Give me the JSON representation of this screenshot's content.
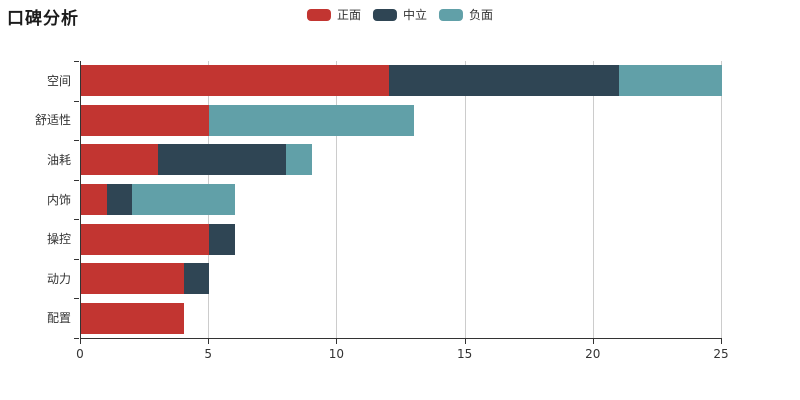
{
  "title": "口碑分析",
  "legend": {
    "position": "top-center",
    "items": [
      "正面",
      "中立",
      "负面"
    ]
  },
  "colors": {
    "positive": "#c23531",
    "neutral": "#2f4554",
    "negative": "#61a0a8",
    "axis_line": "#333333",
    "gridline": "#cccccc",
    "text": "#333333",
    "background": "#ffffff"
  },
  "chart_data": {
    "type": "bar",
    "orientation": "horizontal",
    "stacked": true,
    "title": "口碑分析",
    "xlabel": "",
    "ylabel": "",
    "categories": [
      "空间",
      "舒适性",
      "油耗",
      "内饰",
      "操控",
      "动力",
      "配置"
    ],
    "series": [
      {
        "name": "正面",
        "color": "#c23531",
        "values": [
          12,
          5,
          3,
          1,
          5,
          4,
          4
        ]
      },
      {
        "name": "中立",
        "color": "#2f4554",
        "values": [
          9,
          0,
          5,
          1,
          1,
          1,
          0
        ]
      },
      {
        "name": "负面",
        "color": "#61a0a8",
        "values": [
          4,
          8,
          1,
          4,
          0,
          0,
          0
        ]
      }
    ],
    "totals": [
      25,
      13,
      9,
      6,
      6,
      5,
      4
    ],
    "xlim": [
      0,
      25
    ],
    "x_ticks": [
      0,
      5,
      10,
      15,
      20,
      25
    ],
    "grid": true,
    "legend_position": "top-center"
  }
}
